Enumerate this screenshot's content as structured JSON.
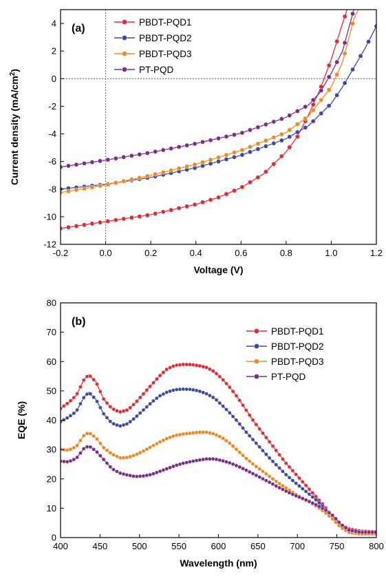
{
  "chart_data": [
    {
      "type": "line",
      "panel_label": "(a)",
      "xlabel": "Voltage (V)",
      "ylabel_main": "Current density (mA/cm",
      "ylabel_sup": "2",
      "ylabel_end": ")",
      "xlim": [
        -0.2,
        1.2
      ],
      "ylim": [
        -12,
        5
      ],
      "xticks": [
        -0.2,
        0.0,
        0.2,
        0.4,
        0.6,
        0.8,
        1.0,
        1.2
      ],
      "xtick_labels": [
        "-0.2",
        "0.0",
        "0.2",
        "0.4",
        "0.6",
        "0.8",
        "1.0",
        "1.2"
      ],
      "yticks": [
        -12,
        -10,
        -8,
        -6,
        -4,
        -2,
        0,
        2,
        4
      ],
      "ytick_labels": [
        "-12",
        "-10",
        "-8",
        "-6",
        "-4",
        "-2",
        "0",
        "2",
        "4"
      ],
      "reference_lines": {
        "x": 0,
        "y": 0
      },
      "legend_position": "top-left",
      "series": [
        {
          "name": "PBDT-PQD1",
          "color": "#e8282e",
          "points": [
            [
              -0.2,
              -10.85
            ],
            [
              0.0,
              -10.35
            ],
            [
              0.2,
              -9.85
            ],
            [
              0.4,
              -9.1
            ],
            [
              0.5,
              -8.6
            ],
            [
              0.6,
              -7.9
            ],
            [
              0.7,
              -6.9
            ],
            [
              0.8,
              -5.3
            ],
            [
              0.85,
              -4.2
            ],
            [
              0.9,
              -2.6
            ],
            [
              0.95,
              -0.8
            ],
            [
              1.0,
              1.4
            ],
            [
              1.05,
              4.0
            ],
            [
              1.07,
              5.0
            ]
          ]
        },
        {
          "name": "PBDT-PQD2",
          "color": "#3a4aa8",
          "points": [
            [
              -0.2,
              -8.0
            ],
            [
              0.0,
              -7.65
            ],
            [
              0.2,
              -7.15
            ],
            [
              0.4,
              -6.45
            ],
            [
              0.6,
              -5.55
            ],
            [
              0.8,
              -4.35
            ],
            [
              0.9,
              -3.4
            ],
            [
              1.0,
              -1.8
            ],
            [
              1.05,
              -0.6
            ],
            [
              1.1,
              0.8
            ],
            [
              1.15,
              2.2
            ],
            [
              1.2,
              3.8
            ]
          ]
        },
        {
          "name": "PBDT-PQD3",
          "color": "#f08a1e",
          "points": [
            [
              -0.2,
              -8.25
            ],
            [
              0.0,
              -7.7
            ],
            [
              0.2,
              -7.0
            ],
            [
              0.4,
              -6.2
            ],
            [
              0.6,
              -5.2
            ],
            [
              0.8,
              -3.9
            ],
            [
              0.9,
              -2.7
            ],
            [
              1.0,
              -0.6
            ],
            [
              1.05,
              1.2
            ],
            [
              1.1,
              4.3
            ],
            [
              1.12,
              5.0
            ]
          ]
        },
        {
          "name": "PT-PQD",
          "color": "#7e2b8e",
          "points": [
            [
              -0.2,
              -6.4
            ],
            [
              0.0,
              -5.9
            ],
            [
              0.2,
              -5.35
            ],
            [
              0.4,
              -4.7
            ],
            [
              0.6,
              -3.95
            ],
            [
              0.8,
              -2.8
            ],
            [
              0.9,
              -1.9
            ],
            [
              0.95,
              -1.0
            ],
            [
              1.0,
              0.4
            ],
            [
              1.05,
              2.0
            ],
            [
              1.08,
              3.8
            ],
            [
              1.1,
              5.0
            ]
          ]
        }
      ]
    },
    {
      "type": "line",
      "panel_label": "(b)",
      "xlabel": "Wavelength (nm)",
      "ylabel": "EQE (%)",
      "xlim": [
        400,
        800
      ],
      "ylim": [
        0,
        80
      ],
      "xticks": [
        400,
        450,
        500,
        550,
        600,
        650,
        700,
        750,
        800
      ],
      "xtick_labels": [
        "400",
        "450",
        "500",
        "550",
        "600",
        "650",
        "700",
        "750",
        "800"
      ],
      "yticks": [
        0,
        10,
        20,
        30,
        40,
        50,
        60,
        70,
        80
      ],
      "ytick_labels": [
        "0",
        "10",
        "20",
        "30",
        "40",
        "50",
        "60",
        "70",
        "80"
      ],
      "legend_position": "top-right",
      "series": [
        {
          "name": "PBDT-PQD1",
          "color": "#e8282e",
          "points": [
            [
              400,
              44
            ],
            [
              410,
              46
            ],
            [
              420,
              48.5
            ],
            [
              430,
              54
            ],
            [
              436,
              55.5
            ],
            [
              445,
              53
            ],
            [
              455,
              47
            ],
            [
              465,
              44
            ],
            [
              475,
              42.8
            ],
            [
              485,
              43.5
            ],
            [
              495,
              46
            ],
            [
              505,
              49
            ],
            [
              515,
              52
            ],
            [
              525,
              55
            ],
            [
              535,
              57.5
            ],
            [
              545,
              58.7
            ],
            [
              555,
              59
            ],
            [
              565,
              59
            ],
            [
              575,
              58.6
            ],
            [
              585,
              58
            ],
            [
              595,
              56.5
            ],
            [
              605,
              54
            ],
            [
              615,
              51
            ],
            [
              625,
              47.5
            ],
            [
              635,
              43.5
            ],
            [
              645,
              39.5
            ],
            [
              655,
              36
            ],
            [
              665,
              32.5
            ],
            [
              675,
              29
            ],
            [
              685,
              25.5
            ],
            [
              695,
              22.5
            ],
            [
              705,
              19.5
            ],
            [
              715,
              16.5
            ],
            [
              725,
              13.5
            ],
            [
              735,
              10.5
            ],
            [
              745,
              7
            ],
            [
              755,
              4.5
            ],
            [
              765,
              3
            ],
            [
              780,
              2.2
            ],
            [
              800,
              2
            ]
          ]
        },
        {
          "name": "PBDT-PQD2",
          "color": "#3a4aa8",
          "points": [
            [
              400,
              39.5
            ],
            [
              410,
              41
            ],
            [
              420,
              43
            ],
            [
              430,
              48
            ],
            [
              436,
              49.5
            ],
            [
              445,
              47
            ],
            [
              455,
              42
            ],
            [
              465,
              39
            ],
            [
              475,
              38
            ],
            [
              485,
              38.8
            ],
            [
              495,
              41
            ],
            [
              505,
              43.5
            ],
            [
              515,
              46
            ],
            [
              525,
              48.2
            ],
            [
              535,
              49.6
            ],
            [
              545,
              50.4
            ],
            [
              555,
              50.6
            ],
            [
              565,
              50.5
            ],
            [
              575,
              50
            ],
            [
              585,
              49
            ],
            [
              595,
              47.5
            ],
            [
              605,
              45
            ],
            [
              615,
              42.3
            ],
            [
              625,
              39.3
            ],
            [
              635,
              36
            ],
            [
              645,
              33
            ],
            [
              655,
              30
            ],
            [
              665,
              27
            ],
            [
              675,
              24.3
            ],
            [
              685,
              21.6
            ],
            [
              695,
              19.2
            ],
            [
              705,
              17
            ],
            [
              715,
              14.8
            ],
            [
              725,
              12.5
            ],
            [
              735,
              10
            ],
            [
              745,
              7.3
            ],
            [
              755,
              4.2
            ],
            [
              765,
              2.5
            ],
            [
              780,
              1.8
            ],
            [
              800,
              1.6
            ]
          ]
        },
        {
          "name": "PBDT-PQD3",
          "color": "#f08a1e",
          "points": [
            [
              400,
              30
            ],
            [
              410,
              29.8
            ],
            [
              420,
              31
            ],
            [
              430,
              35
            ],
            [
              436,
              35.8
            ],
            [
              445,
              34
            ],
            [
              455,
              30.5
            ],
            [
              465,
              28.5
            ],
            [
              475,
              27.2
            ],
            [
              485,
              27.3
            ],
            [
              495,
              28.2
            ],
            [
              505,
              29.5
            ],
            [
              515,
              31
            ],
            [
              525,
              32.5
            ],
            [
              535,
              33.8
            ],
            [
              545,
              34.8
            ],
            [
              555,
              35.3
            ],
            [
              565,
              35.6
            ],
            [
              575,
              35.9
            ],
            [
              585,
              35.9
            ],
            [
              595,
              35.3
            ],
            [
              605,
              34
            ],
            [
              615,
              32
            ],
            [
              625,
              29.5
            ],
            [
              635,
              27
            ],
            [
              645,
              24.8
            ],
            [
              655,
              22.8
            ],
            [
              665,
              20.8
            ],
            [
              675,
              18.8
            ],
            [
              685,
              17
            ],
            [
              695,
              15.2
            ],
            [
              705,
              13.7
            ],
            [
              715,
              12.2
            ],
            [
              725,
              10.5
            ],
            [
              735,
              8.6
            ],
            [
              745,
              6.2
            ],
            [
              755,
              3.5
            ],
            [
              765,
              1.8
            ],
            [
              780,
              1.2
            ],
            [
              800,
              1.2
            ]
          ]
        },
        {
          "name": "PT-PQD",
          "color": "#7e2b8e",
          "points": [
            [
              400,
              26
            ],
            [
              410,
              25.8
            ],
            [
              420,
              27
            ],
            [
              430,
              30.5
            ],
            [
              436,
              31.2
            ],
            [
              445,
              29.5
            ],
            [
              455,
              26.5
            ],
            [
              465,
              23.5
            ],
            [
              475,
              22
            ],
            [
              485,
              21.3
            ],
            [
              495,
              20.8
            ],
            [
              505,
              21
            ],
            [
              515,
              21.5
            ],
            [
              525,
              22.5
            ],
            [
              535,
              23.5
            ],
            [
              545,
              24.5
            ],
            [
              555,
              25.3
            ],
            [
              565,
              25.9
            ],
            [
              575,
              26.4
            ],
            [
              585,
              26.8
            ],
            [
              595,
              26.8
            ],
            [
              605,
              26.2
            ],
            [
              615,
              25.4
            ],
            [
              625,
              24.3
            ],
            [
              635,
              23
            ],
            [
              645,
              21.6
            ],
            [
              655,
              20.2
            ],
            [
              665,
              18.8
            ],
            [
              675,
              17.3
            ],
            [
              685,
              15.9
            ],
            [
              695,
              14.6
            ],
            [
              705,
              13.5
            ],
            [
              715,
              12.3
            ],
            [
              725,
              11
            ],
            [
              735,
              9.5
            ],
            [
              745,
              7.5
            ],
            [
              755,
              4.6
            ],
            [
              765,
              2.6
            ],
            [
              780,
              1.8
            ],
            [
              800,
              1.8
            ]
          ]
        }
      ]
    }
  ]
}
